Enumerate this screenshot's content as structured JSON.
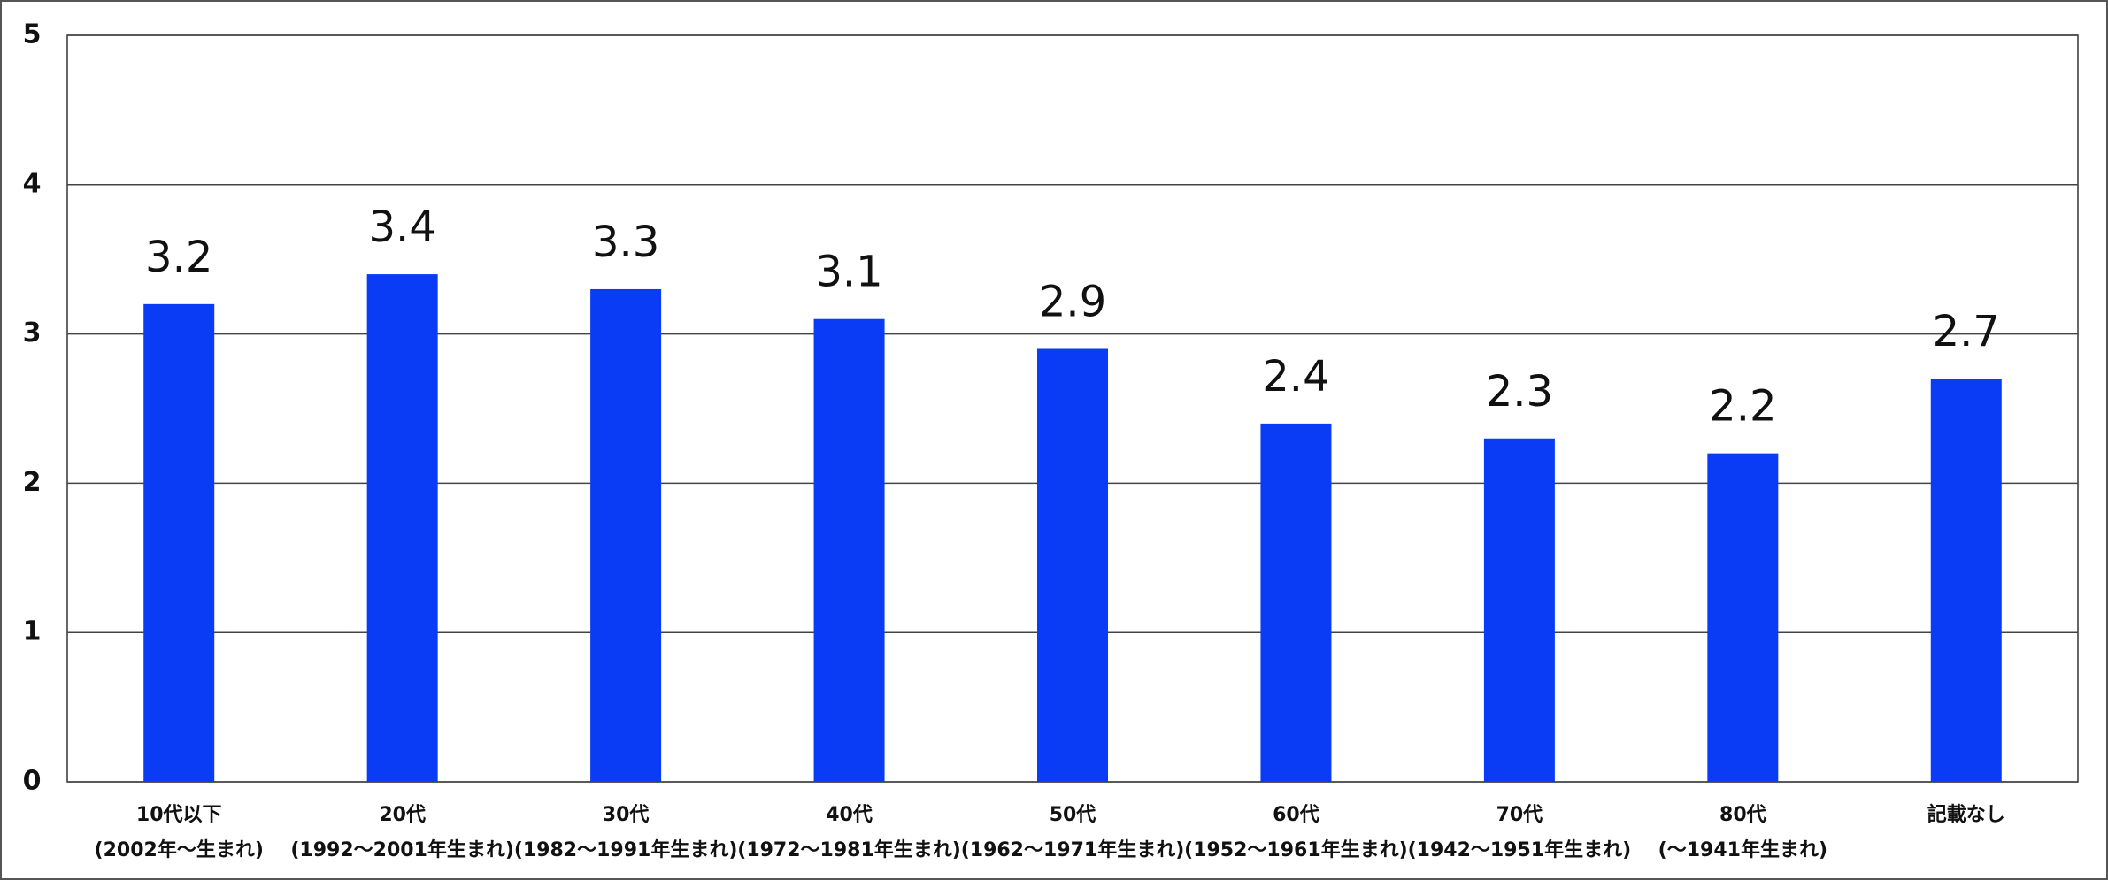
{
  "chart_data": {
    "type": "bar",
    "categories": [
      [
        "10代以下",
        "(2002年〜生まれ)"
      ],
      [
        "20代",
        "(1992〜2001年生まれ)"
      ],
      [
        "30代",
        "(1982〜1991年生まれ)"
      ],
      [
        "40代",
        "(1972〜1981年生まれ)"
      ],
      [
        "50代",
        "(1962〜1971年生まれ)"
      ],
      [
        "60代",
        "(1952〜1961年生まれ)"
      ],
      [
        "70代",
        "(1942〜1951年生まれ)"
      ],
      [
        "80代",
        "(〜1941年生まれ)"
      ],
      [
        "記載なし"
      ]
    ],
    "values": [
      3.2,
      3.4,
      3.3,
      3.1,
      2.9,
      2.4,
      2.3,
      2.2,
      2.7
    ],
    "color": "#0a3cf5",
    "ylim": [
      0,
      5
    ],
    "yticks": [
      0,
      1,
      2,
      3,
      4,
      5
    ],
    "grid": true
  }
}
